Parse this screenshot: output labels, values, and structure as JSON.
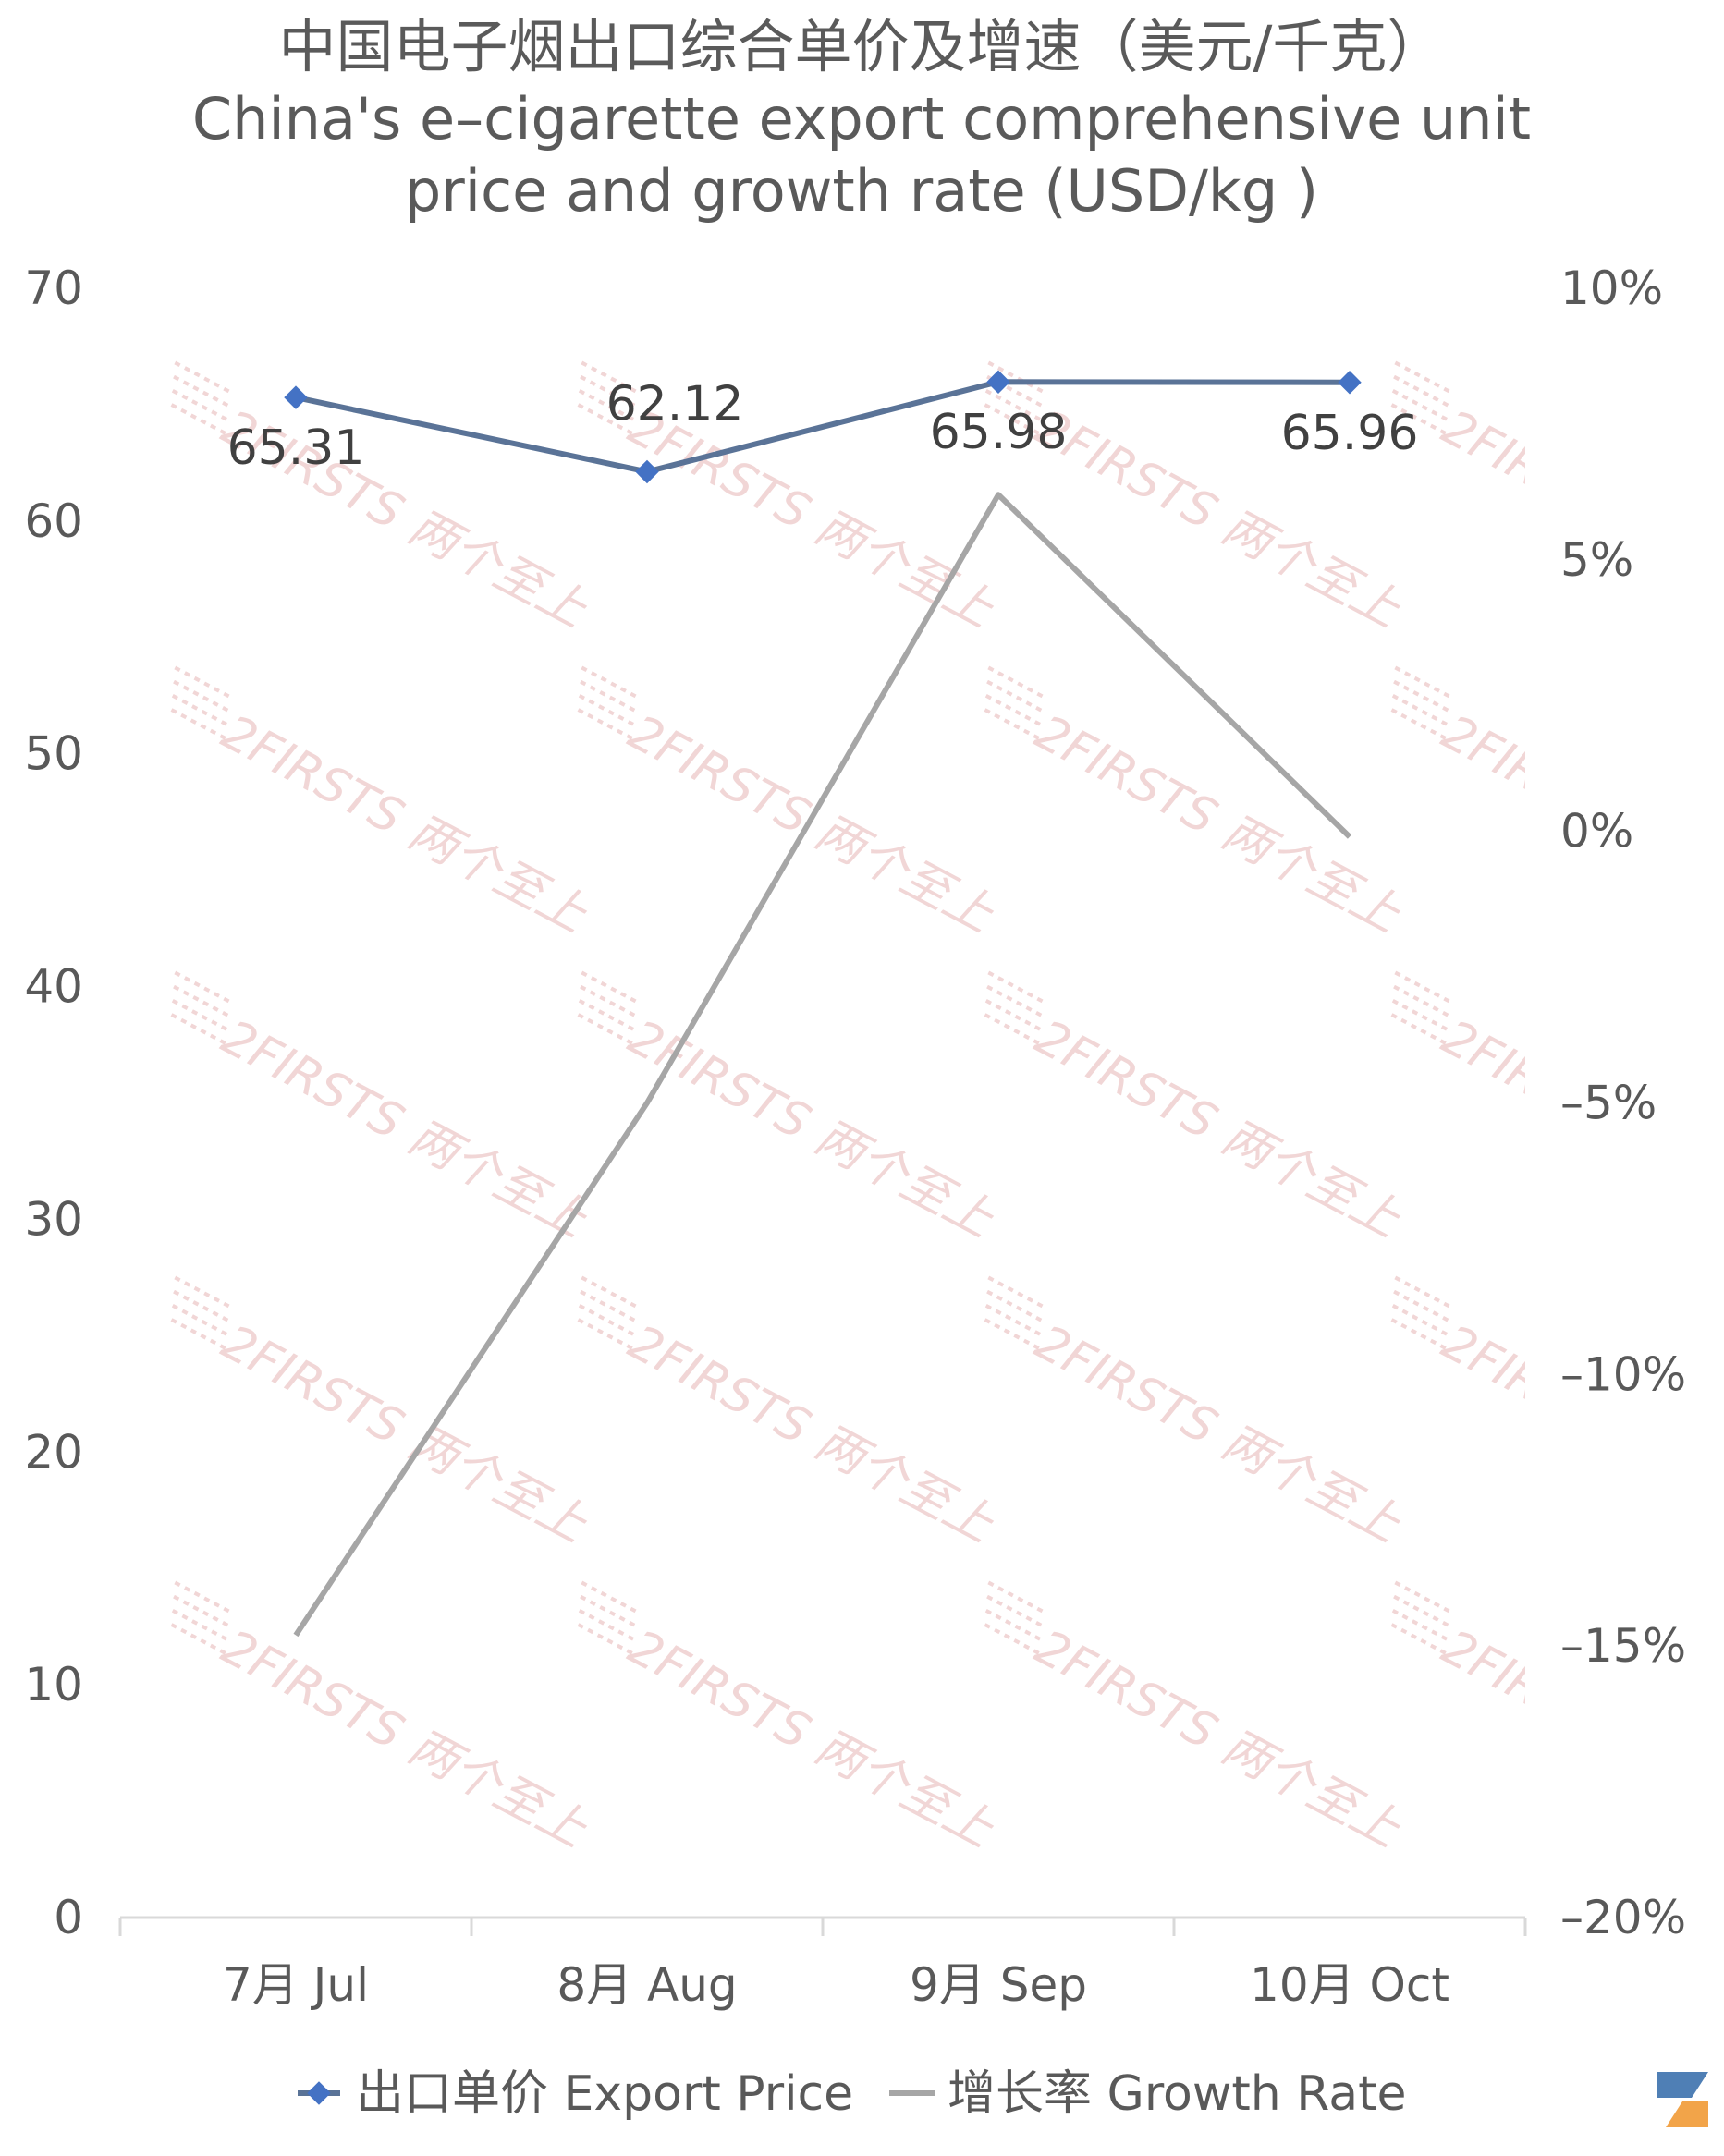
{
  "chart_data": {
    "type": "line",
    "title": "中国电子烟出口综合单价及增速（美元/千克）",
    "subtitle_lines": [
      "China's e–cigarette export comprehensive unit",
      "price and growth rate (USD/kg )"
    ],
    "categories": [
      "7月 Jul",
      "8月 Aug",
      "9月 Sep",
      "10月 Oct"
    ],
    "series": [
      {
        "name": "出口单价 Export Price",
        "axis": "left",
        "values": [
          65.31,
          62.12,
          65.98,
          65.96
        ],
        "data_labels": [
          "65.31",
          "62.12",
          "65.98",
          "65.96"
        ],
        "color": "#5a7397",
        "marker_color": "#4472c4"
      },
      {
        "name": "增长率 Growth Rate",
        "axis": "right",
        "values": [
          -14.8,
          -5.0,
          6.2,
          -0.1
        ],
        "color": "#a6a6a6"
      }
    ],
    "y_left": {
      "min": 0,
      "max": 70,
      "ticks": [
        "0",
        "10",
        "20",
        "30",
        "40",
        "50",
        "60",
        "70"
      ]
    },
    "y_right": {
      "min": -20,
      "max": 10,
      "ticks": [
        "–20%",
        "–15%",
        "–10%",
        "–5%",
        "0%",
        "5%",
        "10%"
      ]
    },
    "grid": false,
    "legend_position": "bottom"
  },
  "watermark": {
    "text": "2FIRSTS 两个至上",
    "color": "#f1d6d6"
  },
  "logo": {
    "name": "2firsts-logo-icon",
    "colors": [
      "#4f7fb5",
      "#f2a449"
    ]
  }
}
